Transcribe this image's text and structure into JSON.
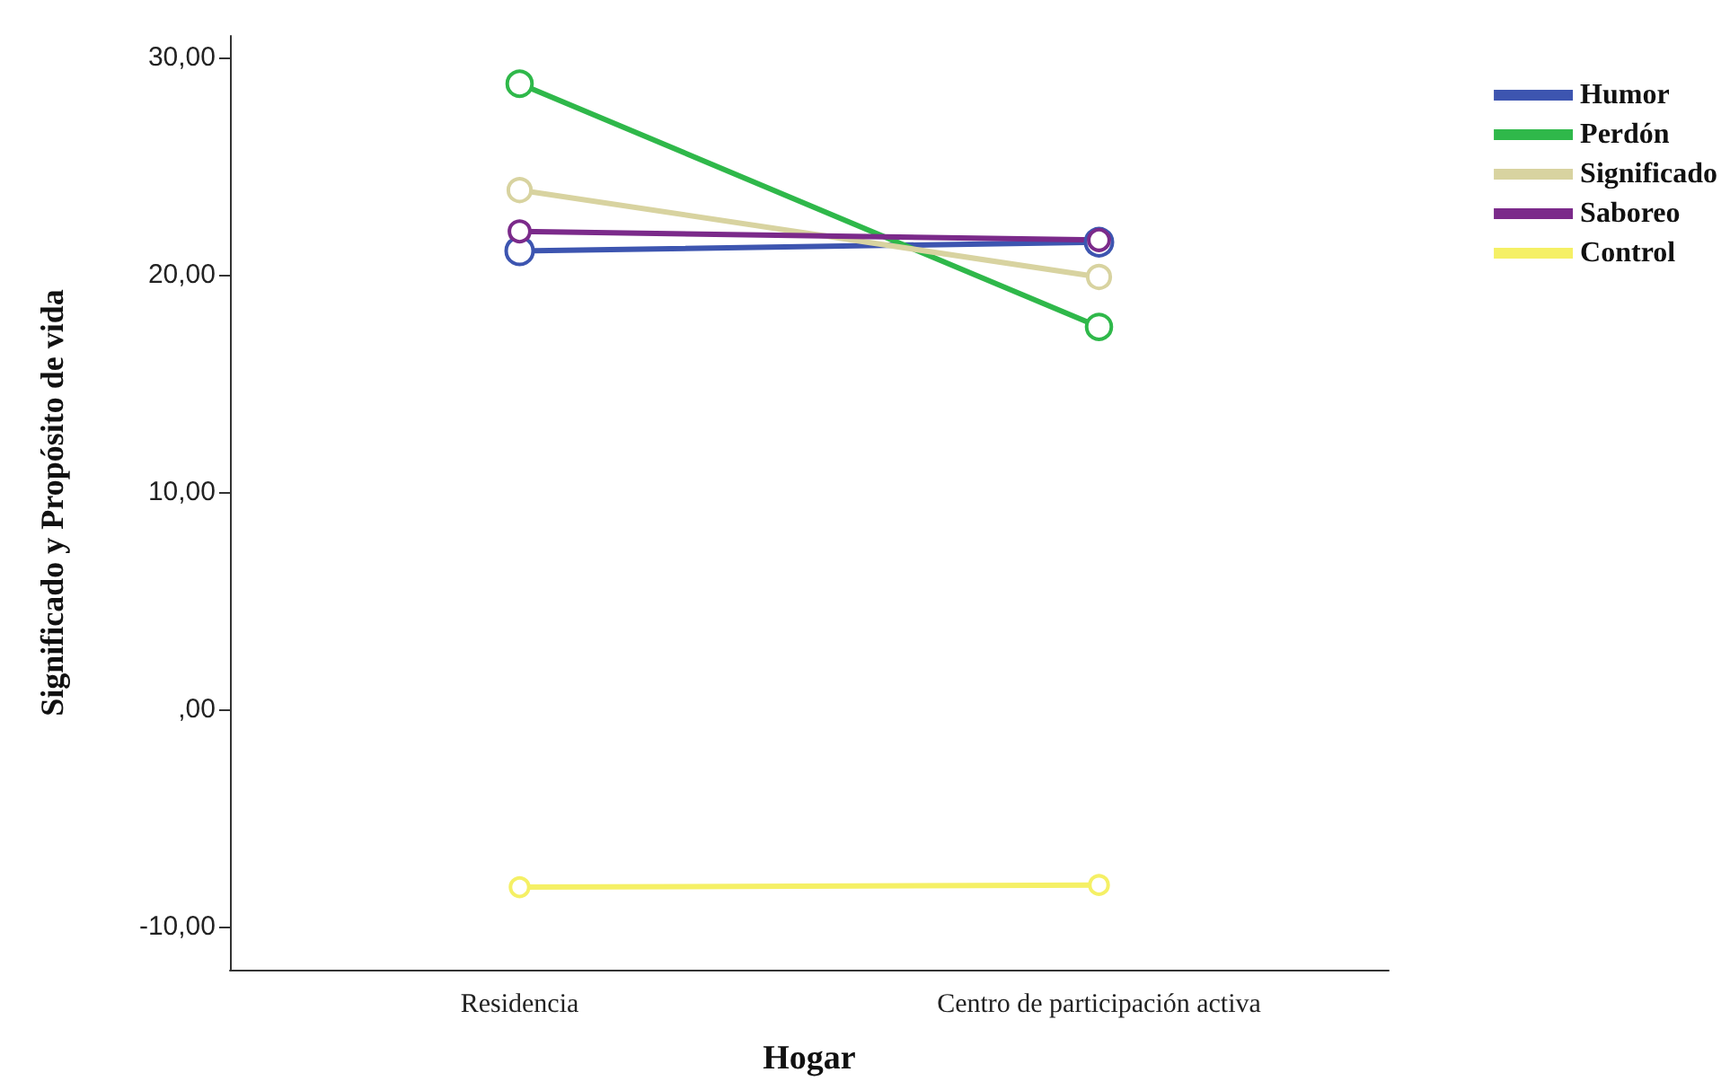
{
  "chart_data": {
    "type": "line",
    "xlabel": "Hogar",
    "ylabel": "Significado y Propósito de vida",
    "categories": [
      "Residencia",
      "Centro de participación activa"
    ],
    "series": [
      {
        "name": "Humor",
        "color": "#3d55b0",
        "values": [
          21.1,
          21.5
        ]
      },
      {
        "name": "Perdón",
        "color": "#2fb84a",
        "values": [
          28.8,
          17.6
        ]
      },
      {
        "name": "Significado",
        "color": "#d8d3a0",
        "values": [
          23.9,
          19.9
        ]
      },
      {
        "name": "Saboreo",
        "color": "#7b2a8a",
        "values": [
          22.0,
          21.6
        ]
      },
      {
        "name": "Control",
        "color": "#f5f065",
        "values": [
          -8.2,
          -8.1
        ]
      }
    ],
    "ylim": [
      -12,
      31
    ],
    "yticks": [
      {
        "value": -10,
        "label": "-10,00"
      },
      {
        "value": 0,
        "label": ",00"
      },
      {
        "value": 10,
        "label": "10,00"
      },
      {
        "value": 20,
        "label": "20,00"
      },
      {
        "value": 30,
        "label": "30,00"
      }
    ],
    "grid": false,
    "legend": "top right",
    "marker": "circle",
    "line_style": "solid"
  }
}
